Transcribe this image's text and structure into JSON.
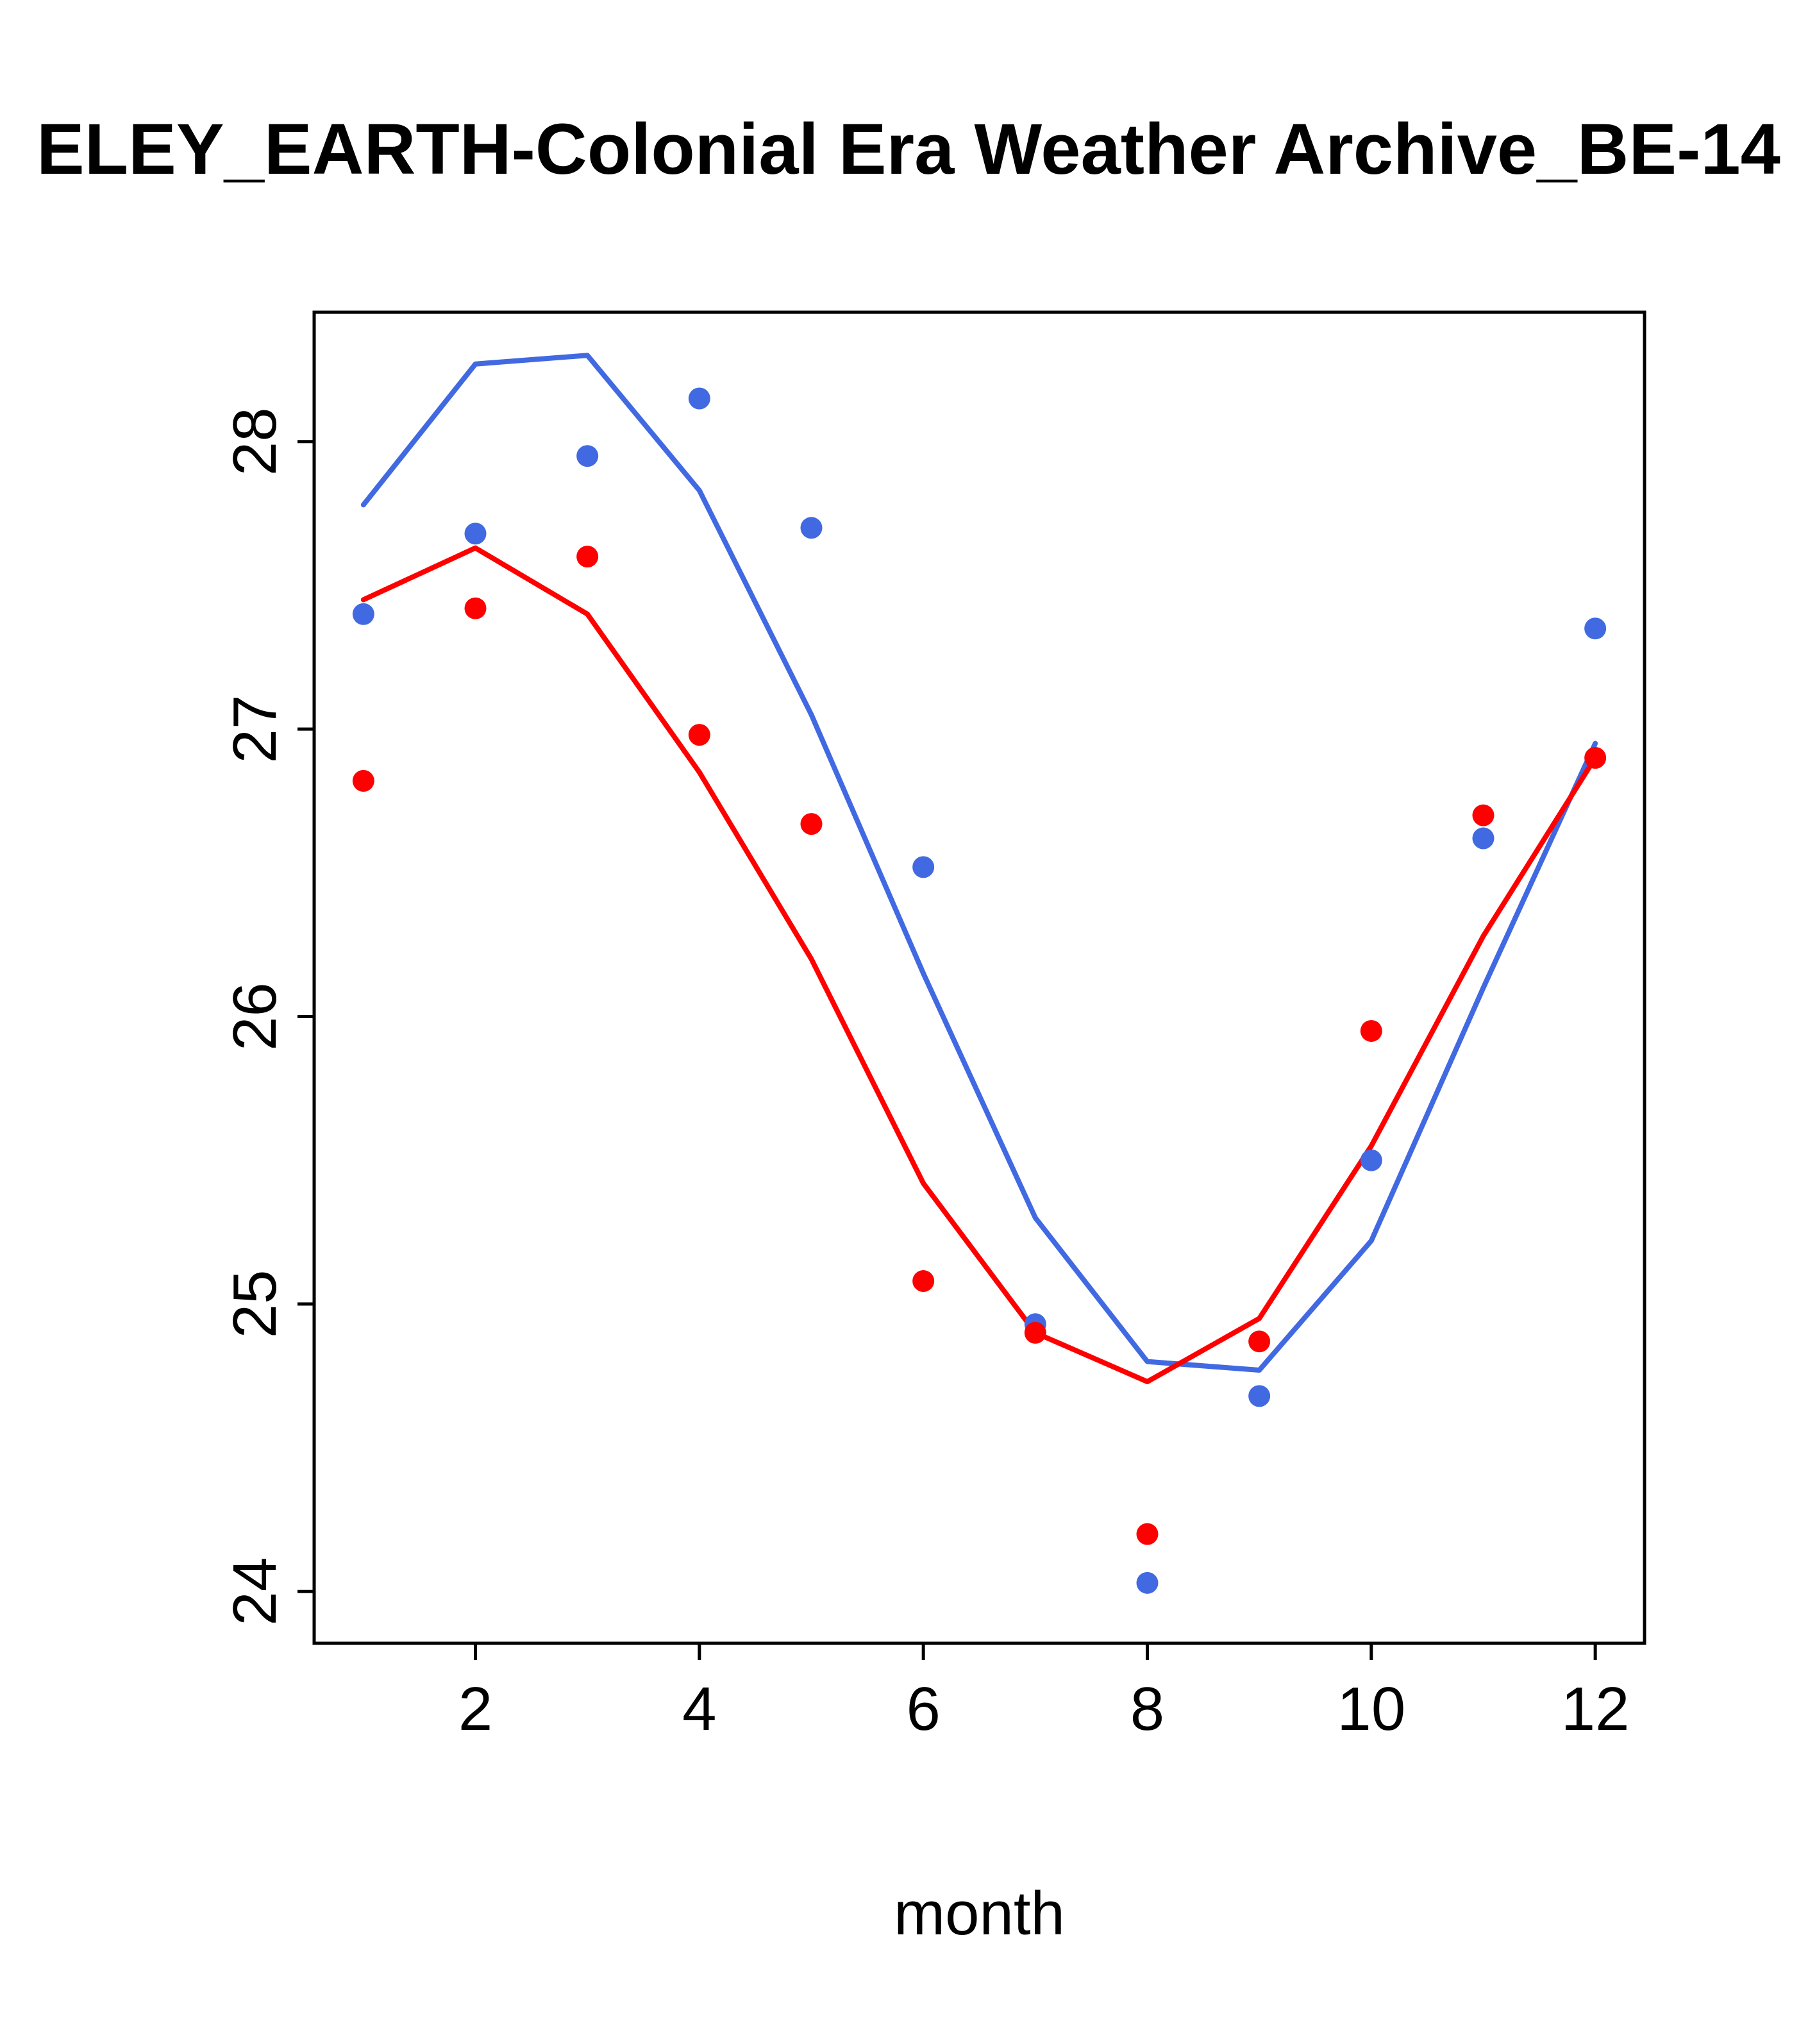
{
  "chart_data": {
    "type": "line",
    "title": "ELEY_EARTH-Colonial Era Weather Archive_BE-14",
    "xlabel": "month",
    "ylabel": "",
    "x": [
      1,
      2,
      3,
      4,
      5,
      6,
      7,
      8,
      9,
      10,
      11,
      12
    ],
    "xlim": [
      0.56,
      12.44
    ],
    "ylim": [
      23.82,
      28.45
    ],
    "xticks": [
      2,
      4,
      6,
      8,
      10,
      12
    ],
    "yticks": [
      24,
      25,
      26,
      27,
      28
    ],
    "grid": false,
    "legend": "none",
    "colors": {
      "blue": "#4169E1",
      "red": "#FF0000",
      "axis": "#000000"
    },
    "series": [
      {
        "name": "blue-line",
        "kind": "line",
        "color_key": "blue",
        "values": [
          27.78,
          28.27,
          28.3,
          27.83,
          27.05,
          26.15,
          25.3,
          24.8,
          24.77,
          25.22,
          26.1,
          26.95
        ]
      },
      {
        "name": "red-line",
        "kind": "line",
        "color_key": "red",
        "values": [
          27.45,
          27.63,
          27.4,
          26.85,
          26.2,
          25.42,
          24.9,
          24.73,
          24.95,
          25.55,
          26.28,
          26.9
        ]
      },
      {
        "name": "blue-points",
        "kind": "scatter",
        "color_key": "blue",
        "values": [
          27.4,
          27.68,
          27.95,
          28.15,
          27.7,
          26.52,
          24.93,
          24.03,
          24.68,
          25.5,
          26.62,
          27.35
        ]
      },
      {
        "name": "red-points",
        "kind": "scatter",
        "color_key": "red",
        "values": [
          26.82,
          27.42,
          27.6,
          26.98,
          26.67,
          25.08,
          24.9,
          24.2,
          24.87,
          25.95,
          26.7,
          26.9
        ]
      }
    ]
  }
}
